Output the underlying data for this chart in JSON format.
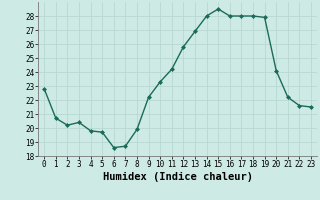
{
  "x": [
    0,
    1,
    2,
    3,
    4,
    5,
    6,
    7,
    8,
    9,
    10,
    11,
    12,
    13,
    14,
    15,
    16,
    17,
    18,
    19,
    20,
    21,
    22,
    23
  ],
  "y": [
    22.8,
    20.7,
    20.2,
    20.4,
    19.8,
    19.7,
    18.6,
    18.7,
    19.9,
    22.2,
    23.3,
    24.2,
    25.8,
    26.9,
    28.0,
    28.5,
    28.0,
    28.0,
    28.0,
    27.9,
    24.1,
    22.2,
    21.6,
    21.5
  ],
  "line_color": "#1a6b5a",
  "marker": "D",
  "marker_size": 2.0,
  "bg_color": "#ceeae4",
  "grid_color": "#b8d8d2",
  "xlabel": "Humidex (Indice chaleur)",
  "xlim": [
    -0.5,
    23.5
  ],
  "ylim": [
    18,
    29
  ],
  "yticks": [
    18,
    19,
    20,
    21,
    22,
    23,
    24,
    25,
    26,
    27,
    28
  ],
  "xticks": [
    0,
    1,
    2,
    3,
    4,
    5,
    6,
    7,
    8,
    9,
    10,
    11,
    12,
    13,
    14,
    15,
    16,
    17,
    18,
    19,
    20,
    21,
    22,
    23
  ],
  "tick_fontsize": 5.5,
  "xlabel_fontsize": 7.5,
  "line_width": 1.0
}
